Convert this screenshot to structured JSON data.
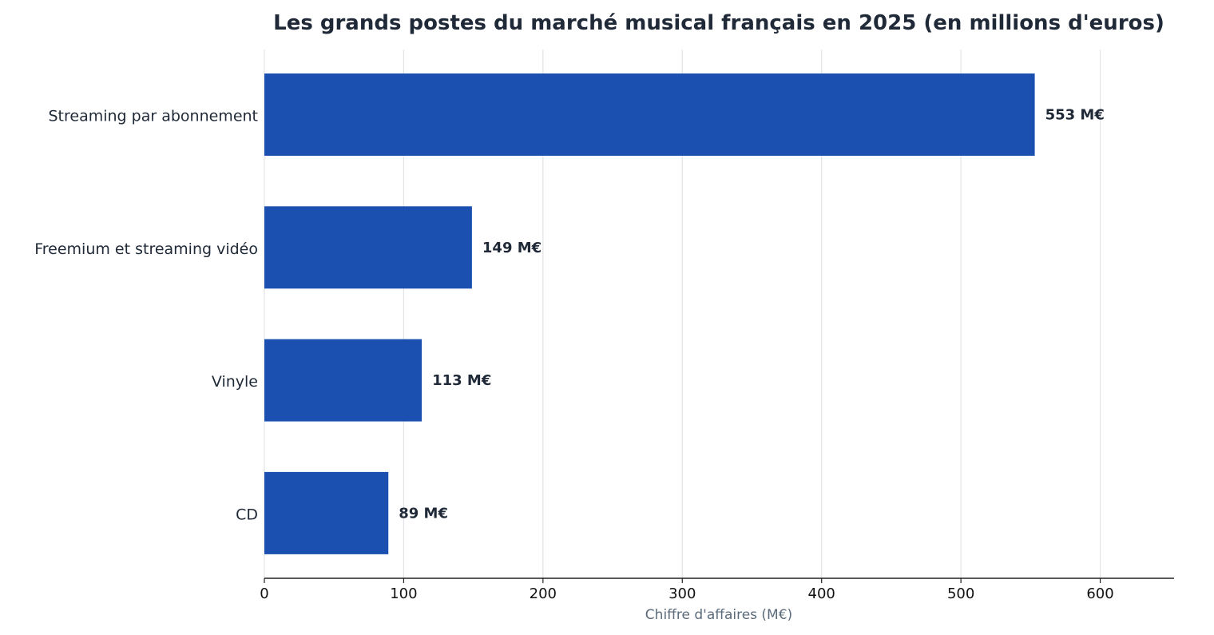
{
  "chart_data": {
    "type": "bar",
    "orientation": "horizontal",
    "title": "Les grands postes du marché musical français en 2025 (en millions d'euros)",
    "xlabel": "Chiffre d'affaires (M€)",
    "ylabel": "",
    "categories": [
      "Streaming par abonnement",
      "Freemium et streaming vidéo",
      "Vinyle",
      "CD"
    ],
    "values": [
      553,
      149,
      113,
      89
    ],
    "value_labels": [
      "553 M€",
      "149 M€",
      "113 M€",
      "89 M€"
    ],
    "xlim": [
      0,
      653
    ],
    "x_ticks": [
      0,
      100,
      200,
      300,
      400,
      500,
      600
    ],
    "x_tick_labels": [
      "0",
      "100",
      "200",
      "300",
      "400",
      "500",
      "600"
    ],
    "grid": "vertical",
    "bar_color": "#1b4fb0"
  }
}
